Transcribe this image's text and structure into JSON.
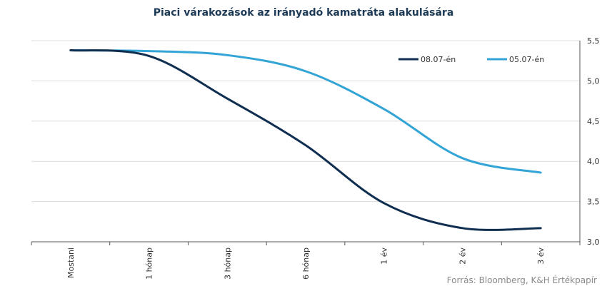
{
  "chart_data": {
    "type": "line",
    "title": "Piaci várakozások az irányadó kamatráta alakulására",
    "source": "Forrás: Bloomberg, K&H Értékpapír",
    "categories": [
      "Mostani",
      "1 hónap",
      "3 hónap",
      "6 hónap",
      "1 év",
      "2 év",
      "3 év"
    ],
    "ylim": [
      3.0,
      5.5
    ],
    "yticks": [
      "3,0",
      "3,5",
      "4,0",
      "4,5",
      "5,0",
      "5,5"
    ],
    "y_axis_side": "right",
    "grid": true,
    "legend_position": "top-right",
    "series": [
      {
        "name": "08.07-én",
        "color": "#0f2e50",
        "values": [
          5.38,
          5.31,
          4.78,
          4.2,
          3.48,
          3.17,
          3.17
        ]
      },
      {
        "name": "05.07-én",
        "color": "#33a4d6",
        "values": [
          5.38,
          5.37,
          5.32,
          5.12,
          4.65,
          4.04,
          3.86
        ]
      }
    ]
  }
}
